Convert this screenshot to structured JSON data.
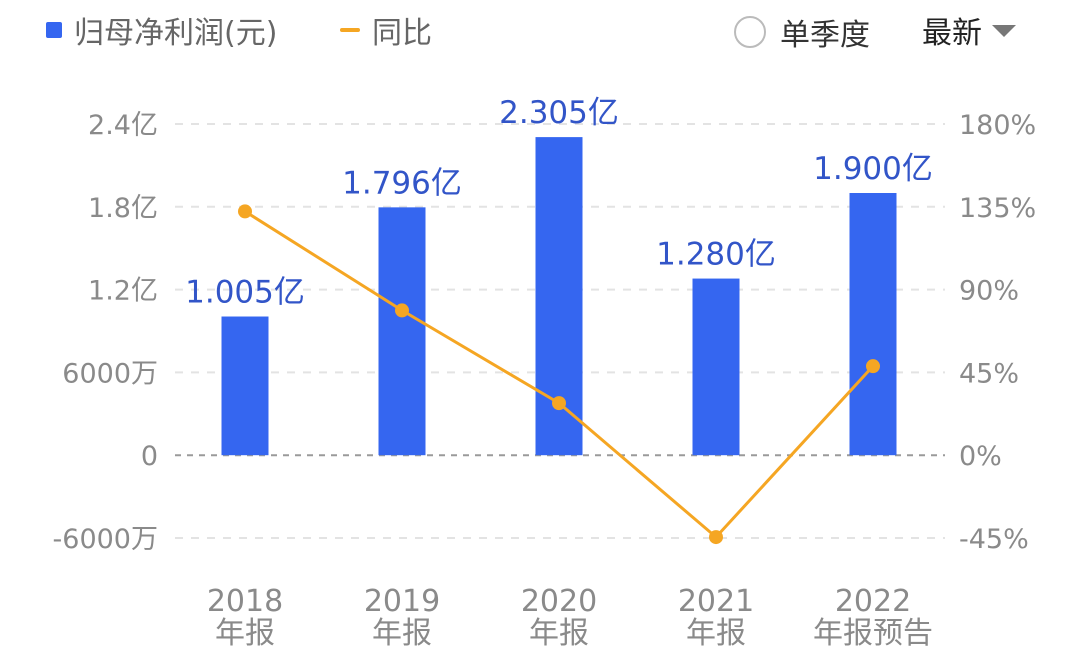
{
  "legend": {
    "bar_label": "归母净利润(元)",
    "line_label": "同比"
  },
  "controls": {
    "toggle_label": "单季度",
    "dropdown_label": "最新"
  },
  "colors": {
    "bar": "#3566F0",
    "line": "#F5A623",
    "data_label": "#3255C8"
  },
  "chart_data": {
    "type": "bar",
    "categories": [
      [
        "2018",
        "年报"
      ],
      [
        "2019",
        "年报"
      ],
      [
        "2020",
        "年报"
      ],
      [
        "2021",
        "年报"
      ],
      [
        "2022",
        "年报预告"
      ]
    ],
    "series": [
      {
        "name": "归母净利润(元)",
        "type": "bar",
        "axis": "left",
        "values": [
          100500000,
          179600000,
          230500000,
          128000000,
          190000000
        ],
        "data_labels": [
          "1.005亿",
          "1.796亿",
          "2.305亿",
          "1.280亿",
          "1.900亿"
        ]
      },
      {
        "name": "同比",
        "type": "line",
        "axis": "right",
        "values": [
          132.5,
          78.7,
          28.3,
          -44.5,
          48.4
        ]
      }
    ],
    "y_left": {
      "range": [
        -60000000,
        240000000
      ],
      "ticks": [
        240000000,
        180000000,
        120000000,
        60000000,
        0,
        -60000000
      ],
      "tick_labels": [
        "2.4亿",
        "1.8亿",
        "1.2亿",
        "6000万",
        "0",
        "-6000万"
      ]
    },
    "y_right": {
      "range": [
        -45,
        180
      ],
      "ticks": [
        180,
        135,
        90,
        45,
        0,
        -45
      ],
      "tick_labels": [
        "180%",
        "135%",
        "90%",
        "45%",
        "0%",
        "-45%"
      ]
    },
    "grid": true,
    "legend_position": "top-left"
  }
}
